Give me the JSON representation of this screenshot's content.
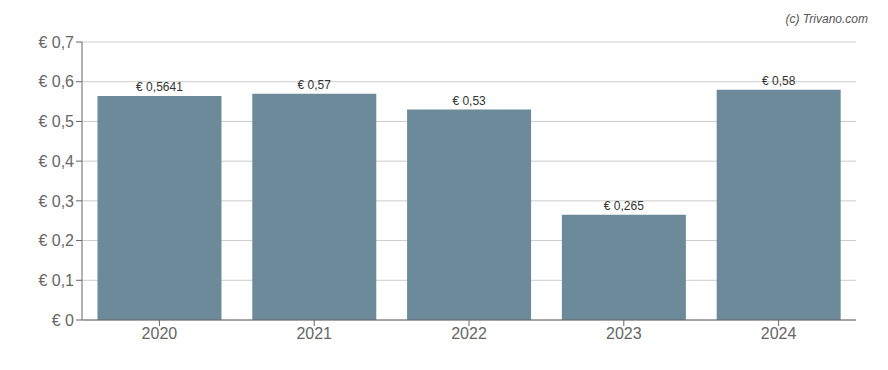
{
  "chart_data": {
    "type": "bar",
    "categories": [
      "2020",
      "2021",
      "2022",
      "2023",
      "2024"
    ],
    "values": [
      0.5641,
      0.57,
      0.53,
      0.265,
      0.58
    ],
    "value_labels": [
      "€ 0,5641",
      "€ 0,57",
      "€ 0,53",
      "€ 0,265",
      "€ 0,58"
    ],
    "data_labels": true,
    "color": "#6d8a9a",
    "ylim": [
      0,
      0.7
    ],
    "yticks": [
      {
        "value": 0,
        "label": "€ 0"
      },
      {
        "value": 0.1,
        "label": "€ 0,1"
      },
      {
        "value": 0.2,
        "label": "€ 0,2"
      },
      {
        "value": 0.3,
        "label": "€ 0,3"
      },
      {
        "value": 0.4,
        "label": "€ 0,4"
      },
      {
        "value": 0.5,
        "label": "€ 0,5"
      },
      {
        "value": 0.6,
        "label": "€ 0,6"
      },
      {
        "value": 0.7,
        "label": "€ 0,7"
      }
    ],
    "grid": true,
    "annotations": [
      "(c) Trivano.com"
    ]
  }
}
